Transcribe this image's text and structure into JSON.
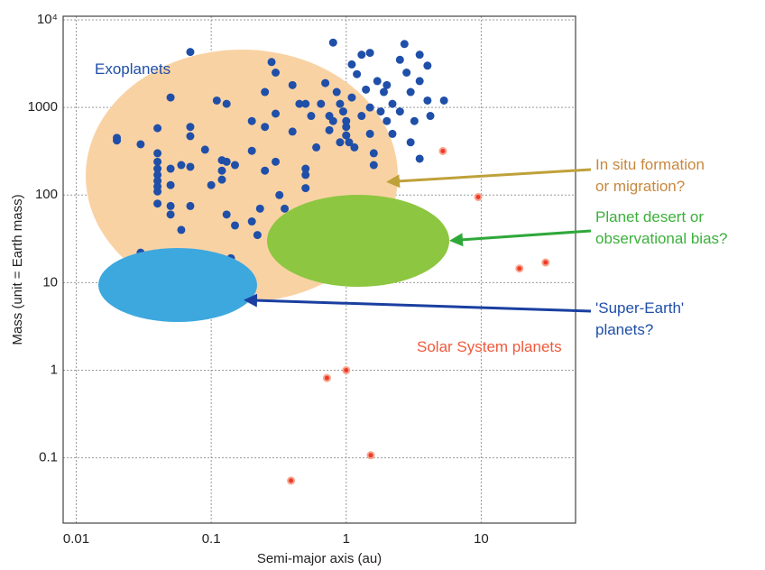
{
  "chart_data": {
    "type": "scatter",
    "x_label": "Semi-major axis (au)",
    "y_label": "Mass (unit = Earth mass)",
    "log_x": true,
    "log_y": true,
    "grid": true,
    "xlim": [
      0.008,
      50
    ],
    "xticks": [
      0.01,
      0.1,
      1,
      10
    ],
    "ylim": [
      0.018,
      11000
    ],
    "yticks": [
      0.1,
      1,
      10,
      100,
      1000,
      {
        "value": 10000,
        "label": "10⁴"
      }
    ],
    "series": [
      {
        "name": "Exoplanets",
        "color": "#1f4fa8",
        "x": [
          0.02,
          0.02,
          0.02,
          0.03,
          0.03,
          0.04,
          0.04,
          0.04,
          0.04,
          0.04,
          0.04,
          0.04,
          0.04,
          0.04,
          0.04,
          0.05,
          0.05,
          0.05,
          0.05,
          0.05,
          0.05,
          0.06,
          0.06,
          0.07,
          0.07,
          0.07,
          0.07,
          0.07,
          0.09,
          0.09,
          0.1,
          0.11,
          0.12,
          0.12,
          0.12,
          0.13,
          0.13,
          0.13,
          0.14,
          0.15,
          0.15,
          0.2,
          0.2,
          0.2,
          0.22,
          0.23,
          0.25,
          0.25,
          0.25,
          0.28,
          0.3,
          0.3,
          0.3,
          0.32,
          0.35,
          0.4,
          0.4,
          0.45,
          0.5,
          0.5,
          0.5,
          0.5,
          0.55,
          0.6,
          0.65,
          0.7,
          0.75,
          0.75,
          0.8,
          0.8,
          0.85,
          0.9,
          0.9,
          0.95,
          1.0,
          1.0,
          1.0,
          1.05,
          1.1,
          1.1,
          1.15,
          1.2,
          1.3,
          1.3,
          1.4,
          1.5,
          1.5,
          1.5,
          1.6,
          1.6,
          1.7,
          1.8,
          1.9,
          2.0,
          2.0,
          2.2,
          2.2,
          2.5,
          2.5,
          2.7,
          2.8,
          3.0,
          3.0,
          3.2,
          3.5,
          3.5,
          3.5,
          4.0,
          4.0,
          4.2,
          5.3
        ],
        "values": [
          450,
          420,
          6.3,
          380,
          22,
          580,
          300,
          240,
          200,
          170,
          145,
          125,
          110,
          80,
          16,
          1300,
          200,
          130,
          75,
          60,
          22,
          220,
          40,
          4300,
          600,
          470,
          210,
          75,
          330,
          13,
          130,
          1200,
          250,
          190,
          150,
          1100,
          240,
          60,
          19,
          220,
          45,
          700,
          320,
          50,
          35,
          70,
          1500,
          600,
          190,
          3300,
          2500,
          850,
          240,
          100,
          70,
          1800,
          530,
          1100,
          1100,
          200,
          170,
          120,
          800,
          350,
          1100,
          1900,
          800,
          550,
          700,
          5500,
          1500,
          1100,
          400,
          900,
          700,
          600,
          480,
          400,
          3100,
          1300,
          350,
          2400,
          4000,
          800,
          1600,
          4200,
          1000,
          500,
          300,
          220,
          2000,
          900,
          1500,
          1800,
          700,
          1100,
          500,
          3500,
          900,
          5300,
          2500,
          1500,
          400,
          700,
          4000,
          2000,
          260,
          1200,
          3000,
          800,
          1200
        ]
      },
      {
        "name": "Solar System planets",
        "color": "#ee3b2b",
        "x": [
          0.39,
          0.72,
          1.0,
          1.52,
          5.2,
          9.5,
          19.2,
          30
        ],
        "values": [
          0.055,
          0.815,
          1,
          0.107,
          318,
          95,
          14.5,
          17
        ]
      }
    ],
    "annotations": [
      {
        "lines": [
          "In situ formation",
          "or migration?"
        ],
        "color": "#c8883e"
      },
      {
        "lines": [
          "Planet desert or",
          "observational bias?"
        ],
        "color": "#3bb03b"
      },
      {
        "lines": [
          "'Super-Earth'",
          "planets?"
        ],
        "color": "#1f4fa8"
      }
    ]
  }
}
